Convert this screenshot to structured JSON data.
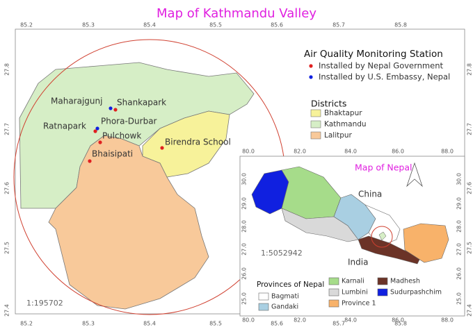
{
  "title": "Map of Kathmandu Valley",
  "main_map": {
    "x_ticks": [
      "85.2",
      "85.3",
      "85.4",
      "85.5",
      "85.6",
      "85.7",
      "85.8"
    ],
    "y_ticks": [
      "27.8",
      "27.7",
      "27.6",
      "27.5",
      "27.4"
    ],
    "scale": "1:195702",
    "stations": [
      "Maharajgunj",
      "Shankapark",
      "Phora-Durbar",
      "Ratnapark",
      "Pulchowk",
      "Bhaisipati",
      "Birendra School"
    ]
  },
  "station_legend": {
    "title": "Air Quality Monitoring Station",
    "entries": [
      {
        "name": "Installed by Nepal Government",
        "color": "#e02020"
      },
      {
        "name": "Installed by U.S. Embassy, Nepal",
        "color": "#1020e0"
      }
    ]
  },
  "district_legend": {
    "title": "Districts",
    "entries": [
      {
        "name": "Bhaktapur",
        "color": "#f7f29a"
      },
      {
        "name": "Kathmandu",
        "color": "#d6eec6"
      },
      {
        "name": "Lalitpur",
        "color": "#f8c99a"
      }
    ]
  },
  "inset": {
    "title": "Map of Nepal",
    "x_ticks": [
      "80.0",
      "82.0",
      "84.0",
      "86.0",
      "88.0"
    ],
    "y_ticks": [
      "30.0",
      "29.0",
      "28.0",
      "27.0",
      "26.0",
      "25.0"
    ],
    "scale": "1:5052942",
    "labels": [
      "China",
      "India"
    ],
    "legend_title": "Provinces of Nepal",
    "provinces": [
      {
        "name": "Bagmati",
        "color": "#ffffff"
      },
      {
        "name": "Gandaki",
        "color": "#a9cfe2"
      },
      {
        "name": "Karnali",
        "color": "#a6dc8a"
      },
      {
        "name": "Lumbini",
        "color": "#d9d9d9"
      },
      {
        "name": "Province 1",
        "color": "#f8b26a"
      },
      {
        "name": "Madhesh",
        "color": "#6b3327"
      },
      {
        "name": "Sudurpashchim",
        "color": "#1020e0"
      }
    ]
  }
}
